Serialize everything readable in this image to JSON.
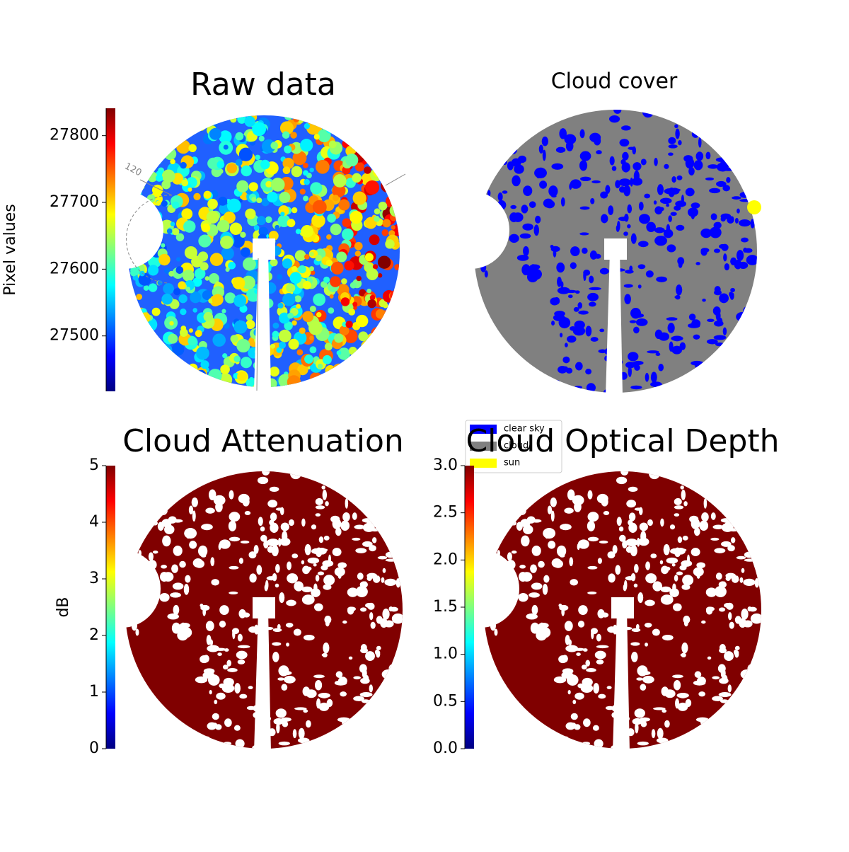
{
  "chart_data": [
    {
      "type": "image",
      "title": "Raw data",
      "clabel": "Pixel values",
      "cmap": "jet",
      "clim": [
        27417,
        27841
      ],
      "cticks": [
        27500,
        27600,
        27700,
        27800
      ],
      "annotation": "120"
    },
    {
      "type": "categorical-image",
      "title": "Cloud cover",
      "series": [
        {
          "name": "clear sky",
          "color": "#0000ff"
        },
        {
          "name": "cloud",
          "color": "#808080"
        },
        {
          "name": "sun",
          "color": "#ffff00"
        }
      ]
    },
    {
      "type": "image",
      "title": "Cloud Attenuation",
      "clabel": "dB",
      "cmap": "jet",
      "clim": [
        0,
        5
      ],
      "cticks": [
        0,
        1,
        2,
        3,
        4,
        5
      ]
    },
    {
      "type": "image",
      "title": "Cloud Optical Depth",
      "cmap": "jet",
      "clim": [
        0,
        3
      ],
      "cticks": [
        {
          "value": 0,
          "label": "0.0"
        },
        0.5,
        {
          "value": 1,
          "label": "1.0"
        },
        1.5,
        {
          "value": 2,
          "label": "2.0"
        },
        2.5,
        {
          "value": 3,
          "label": "3.0"
        }
      ]
    }
  ]
}
